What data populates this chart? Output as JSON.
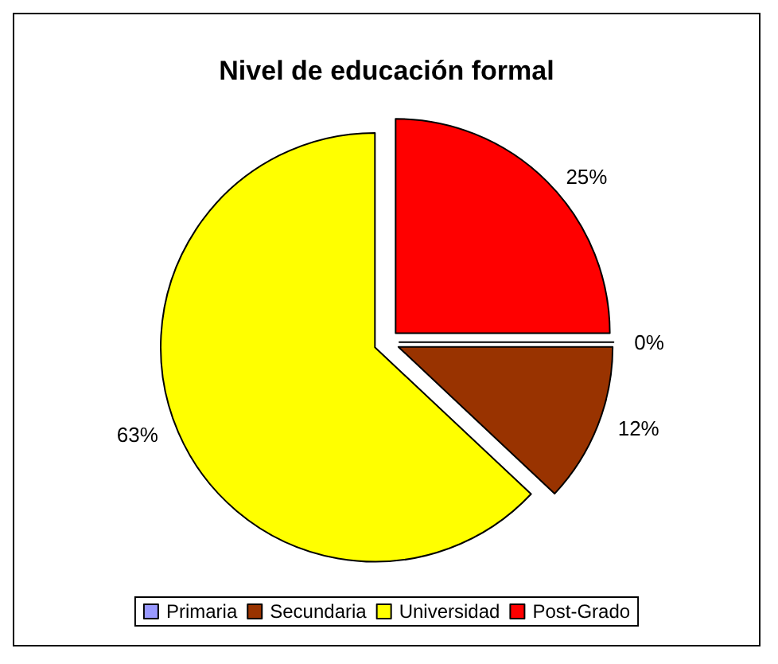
{
  "chart_data": {
    "type": "pie",
    "title": "Nivel de educación formal",
    "categories": [
      "Primaria",
      "Secundaria",
      "Universidad",
      "Post-Grado"
    ],
    "values": [
      0,
      12,
      63,
      25
    ],
    "colors": [
      "#9999ff",
      "#993300",
      "#ffff00",
      "#ff0000"
    ],
    "value_labels": [
      "0%",
      "12%",
      "63%",
      "25%"
    ],
    "legend": "bottom"
  }
}
